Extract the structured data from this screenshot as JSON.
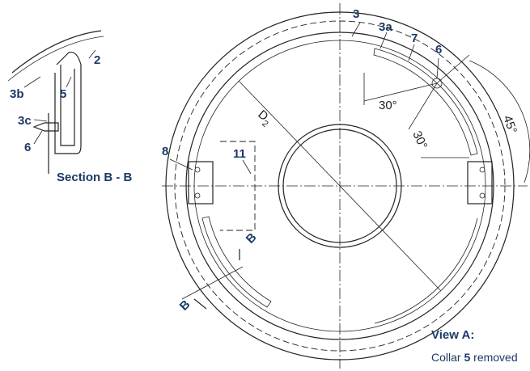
{
  "section_view": {
    "labels": {
      "ring": "2",
      "wall": "3b",
      "collar": "5",
      "bracket": "3c",
      "screw": "6"
    },
    "caption": "Section B - B"
  },
  "main_view": {
    "labels": {
      "housing": "3",
      "rail": "3a",
      "slot": "7",
      "screw": "6",
      "bracket": "8",
      "cutout": "11"
    },
    "angles": [
      "45°",
      "30°",
      "30°"
    ],
    "diameter": {
      "symbol": "D",
      "subscript": "2"
    },
    "section_marks": [
      "B",
      "B"
    ]
  },
  "caption": {
    "title": "View A:",
    "note": [
      "Collar",
      "5",
      "removed"
    ]
  }
}
